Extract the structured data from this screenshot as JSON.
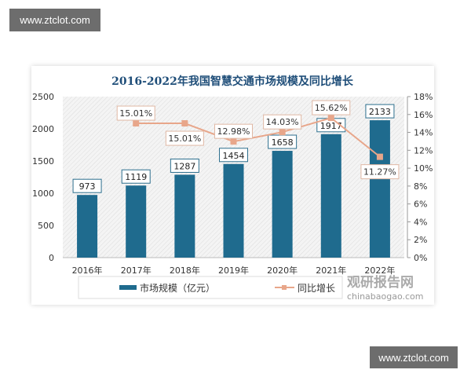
{
  "watermark": "www.ztclot.com",
  "brand": {
    "name": "观研报告网",
    "url": "chinabaogao.com"
  },
  "chart_data": {
    "type": "bar+line",
    "title": "2016-2022年我国智慧交通市场规模及同比增长",
    "categories": [
      "2016年",
      "2017年",
      "2018年",
      "2019年",
      "2020年",
      "2021年",
      "2022年"
    ],
    "series": [
      {
        "name": "市场规模（亿元）",
        "type": "bar",
        "axis": "left",
        "color": "#1f6b8e",
        "values": [
          973,
          1119,
          1287,
          1454,
          1658,
          1917,
          2133
        ]
      },
      {
        "name": "同比增长",
        "type": "line",
        "axis": "right",
        "color": "#e8a68a",
        "values": [
          null,
          15.01,
          15.01,
          12.98,
          14.03,
          15.62,
          11.27
        ],
        "labels": [
          "",
          "15.01%",
          "15.01%",
          "12.98%",
          "14.03%",
          "15.62%",
          "11.27%"
        ]
      }
    ],
    "yleft": {
      "lim": [
        0,
        2500
      ],
      "ticks": [
        "0",
        "500",
        "1000",
        "1500",
        "2000",
        "2500"
      ]
    },
    "yright": {
      "lim": [
        0,
        18
      ],
      "ticks": [
        "0%",
        "2%",
        "4%",
        "6%",
        "8%",
        "10%",
        "12%",
        "14%",
        "16%",
        "18%"
      ]
    },
    "legend": "bottom"
  }
}
